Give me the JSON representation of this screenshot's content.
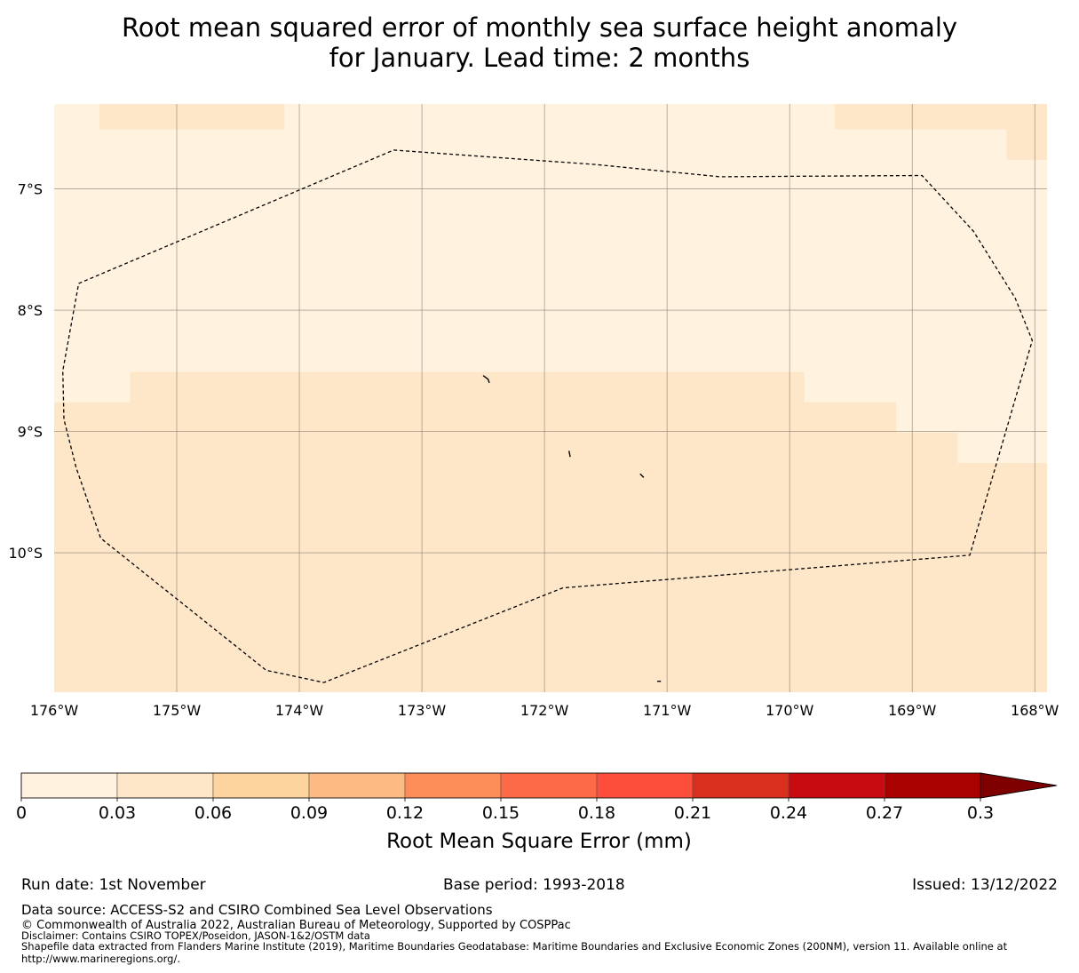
{
  "chart_data": {
    "type": "heatmap",
    "title_lines": [
      "Root mean squared error of monthly sea surface height anomaly",
      "for January. Lead time: 2 months"
    ],
    "x_range": [
      -176.0,
      -167.9
    ],
    "y_range": [
      -11.15,
      -6.3
    ],
    "x_ticks": [
      {
        "value": -176,
        "label": "176°W"
      },
      {
        "value": -175,
        "label": "175°W"
      },
      {
        "value": -174,
        "label": "174°W"
      },
      {
        "value": -173,
        "label": "173°W"
      },
      {
        "value": -172,
        "label": "172°W"
      },
      {
        "value": -171,
        "label": "171°W"
      },
      {
        "value": -170,
        "label": "170°W"
      },
      {
        "value": -169,
        "label": "169°W"
      },
      {
        "value": -168,
        "label": "168°W"
      }
    ],
    "y_ticks": [
      {
        "value": -7,
        "label": "7°S"
      },
      {
        "value": -8,
        "label": "8°S"
      },
      {
        "value": -9,
        "label": "9°S"
      },
      {
        "value": -10,
        "label": "10°S"
      }
    ],
    "grid": true,
    "background_value_range": [
      0,
      0.03
    ],
    "cells": [
      {
        "lon": [
          -175.63,
          -174.12
        ],
        "lat": [
          -6.51,
          -6.3
        ],
        "range": [
          0.03,
          0.06
        ]
      },
      {
        "lon": [
          -169.63,
          -168.23
        ],
        "lat": [
          -6.51,
          -6.3
        ],
        "range": [
          0.03,
          0.06
        ]
      },
      {
        "lon": [
          -168.23,
          -167.9
        ],
        "lat": [
          -6.76,
          -6.3
        ],
        "range": [
          0.03,
          0.06
        ]
      },
      {
        "lon": [
          -175.38,
          -169.88
        ],
        "lat": [
          -8.51,
          -11.15
        ],
        "range": [
          0.03,
          0.06
        ]
      },
      {
        "lon": [
          -176.0,
          -175.38
        ],
        "lat": [
          -8.76,
          -11.15
        ],
        "range": [
          0.03,
          0.06
        ]
      },
      {
        "lon": [
          -169.88,
          -169.13
        ],
        "lat": [
          -8.76,
          -11.15
        ],
        "range": [
          0.03,
          0.06
        ]
      },
      {
        "lon": [
          -169.13,
          -168.63
        ],
        "lat": [
          -9.01,
          -11.15
        ],
        "range": [
          0.03,
          0.06
        ]
      },
      {
        "lon": [
          -168.63,
          -167.9
        ],
        "lat": [
          -9.26,
          -11.15
        ],
        "range": [
          0.03,
          0.06
        ]
      }
    ],
    "eez_boundary": [
      [
        -175.8,
        -7.78
      ],
      [
        -175.92,
        -8.2
      ],
      [
        -175.9,
        -8.9
      ],
      [
        -175.82,
        -9.3
      ],
      [
        -175.62,
        -9.88
      ],
      [
        -174.27,
        -10.97
      ],
      [
        -174.17,
        -10.99
      ],
      [
        -173.8,
        -11.07
      ],
      [
        -173.23,
        -6.68
      ],
      [
        -171.58,
        -6.8
      ],
      [
        -170.57,
        -6.9
      ],
      [
        -168.92,
        -6.89
      ],
      [
        -168.5,
        -7.35
      ],
      [
        -168.16,
        -7.9
      ],
      [
        -168.02,
        -8.25
      ],
      [
        -168.53,
        -10.02
      ],
      [
        -171.85,
        -10.29
      ],
      [
        -173.8,
        -11.07
      ]
    ],
    "eez_boundary_segments": [
      [
        [
          -175.8,
          -7.78
        ],
        [
          -173.23,
          -6.68
        ],
        [
          -171.58,
          -6.8
        ],
        [
          -170.57,
          -6.9
        ],
        [
          -168.92,
          -6.89
        ],
        [
          -168.5,
          -7.35
        ],
        [
          -168.16,
          -7.9
        ],
        [
          -168.02,
          -8.25
        ],
        [
          -168.53,
          -10.02
        ],
        [
          -171.85,
          -10.29
        ],
        [
          -173.8,
          -11.07
        ],
        [
          -174.17,
          -10.99
        ],
        [
          -174.27,
          -10.97
        ],
        [
          -175.62,
          -9.88
        ],
        [
          -175.82,
          -9.3
        ],
        [
          -175.92,
          -8.9
        ],
        [
          -175.93,
          -8.5
        ],
        [
          -175.8,
          -7.78
        ]
      ]
    ],
    "islands": [
      [
        [
          -172.5,
          -8.54
        ],
        [
          -172.46,
          -8.57
        ],
        [
          -172.45,
          -8.6
        ]
      ],
      [
        [
          -171.8,
          -9.16
        ],
        [
          -171.79,
          -9.21
        ]
      ],
      [
        [
          -171.22,
          -9.35
        ],
        [
          -171.19,
          -9.38
        ]
      ],
      [
        [
          -171.08,
          -11.06
        ],
        [
          -171.05,
          -11.06
        ]
      ]
    ],
    "colorbar": {
      "label": "Root Mean Square Error (mm)",
      "boundaries": [
        0,
        0.03,
        0.06,
        0.09,
        0.12,
        0.15,
        0.18,
        0.21,
        0.24,
        0.27,
        0.3
      ],
      "tick_labels": [
        "0",
        "0.03",
        "0.06",
        "0.09",
        "0.12",
        "0.15",
        "0.18",
        "0.21",
        "0.24",
        "0.27",
        "0.3"
      ],
      "colors": [
        "#fff3e0",
        "#fee6c8",
        "#fdd49e",
        "#fdbb84",
        "#fc8d59",
        "#fd6a48",
        "#fc4e3a",
        "#d92f1f",
        "#c70b10",
        "#a90000",
        "#7f0000"
      ],
      "extend": "max"
    }
  },
  "footer": {
    "run_date": "Run date: 1st November",
    "base_period": "Base period: 1993-2018",
    "issued": "Issued: 13/12/2022",
    "data_source": "Data source: ACCESS-S2 and CSIRO Combined Sea Level Observations",
    "copyright": "© Commonwealth of Australia 2022, Australian Bureau of Meteorology, Supported by COSPPac",
    "disclaimer": "Disclaimer: Contains CSIRO TOPEX/Poseidon, JASON-1&2/OSTM data",
    "shapefile": "Shapefile data extracted from Flanders Marine Institute (2019), Maritime Boundaries Geodatabase: Maritime Boundaries and Exclusive Economic Zones (200NM), version 11. Available online at http://www.marineregions.org/."
  }
}
